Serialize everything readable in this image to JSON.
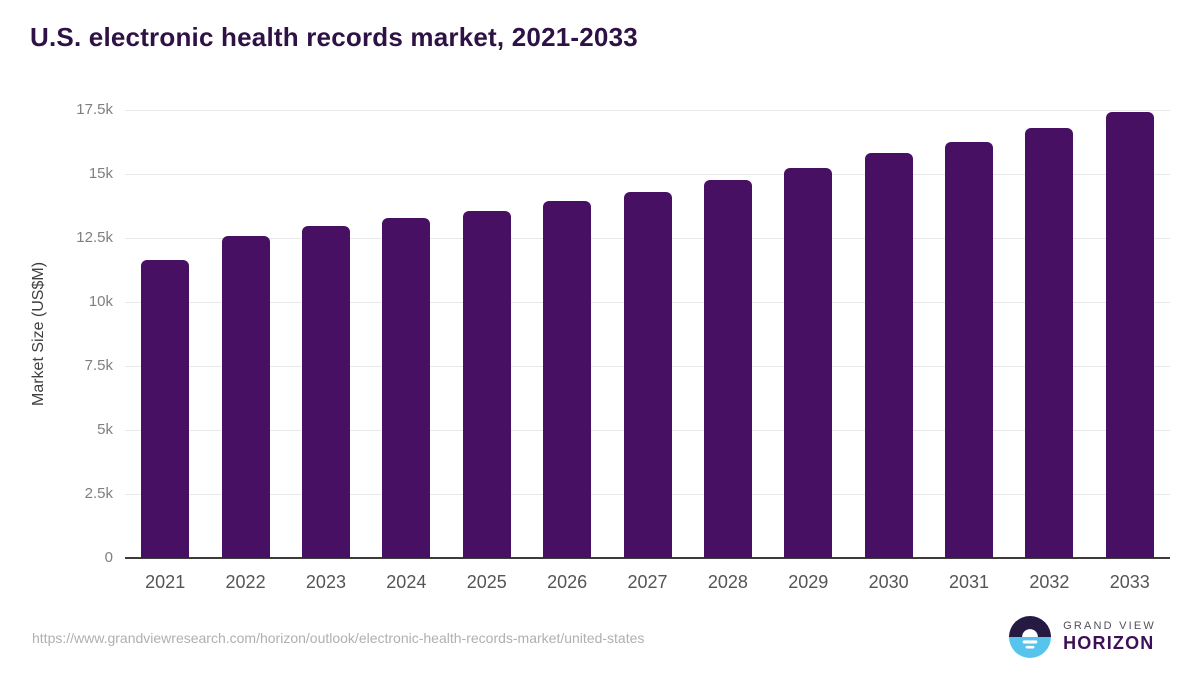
{
  "page": {
    "title": "U.S. electronic health records market, 2021-2033"
  },
  "chart_data": {
    "type": "bar",
    "title": "U.S. electronic health records market, 2021-2033",
    "categories": [
      "2021",
      "2022",
      "2023",
      "2024",
      "2025",
      "2026",
      "2027",
      "2028",
      "2029",
      "2030",
      "2031",
      "2032",
      "2033"
    ],
    "values": [
      11650,
      12560,
      12950,
      13280,
      13570,
      13940,
      14300,
      14760,
      15220,
      15820,
      16260,
      16800,
      17430
    ],
    "unit": "US$M",
    "xlabel": "",
    "ylabel": "Market Size (US$M)",
    "ylim": [
      0,
      17500
    ],
    "yticks": [
      {
        "label": "0",
        "value": 0
      },
      {
        "label": "2.5k",
        "value": 2500
      },
      {
        "label": "5k",
        "value": 5000
      },
      {
        "label": "7.5k",
        "value": 7500
      },
      {
        "label": "10k",
        "value": 10000
      },
      {
        "label": "12.5k",
        "value": 12500
      },
      {
        "label": "15k",
        "value": 15000
      },
      {
        "label": "17.5k",
        "value": 17500
      }
    ],
    "grid": true,
    "legend": "none",
    "bar_color": "#481062"
  },
  "footer": {
    "source_url": "https://www.grandviewresearch.com/horizon/outlook/electronic-health-records-market/united-states",
    "logo": {
      "line1": "GRAND VIEW",
      "line2": "HORIZON"
    }
  },
  "colors": {
    "title_text": "#2e1245",
    "bar_fill": "#481062",
    "gridline": "#e8e8e8",
    "axis_line": "#3c3c3c",
    "y_tick_text": "#7f7f7f",
    "x_tick_text": "#555555",
    "source_text": "#b1afaf",
    "logo_dark": "#261a43",
    "logo_blue": "#57c4ee",
    "logo_horizon_text": "#3b1056"
  }
}
